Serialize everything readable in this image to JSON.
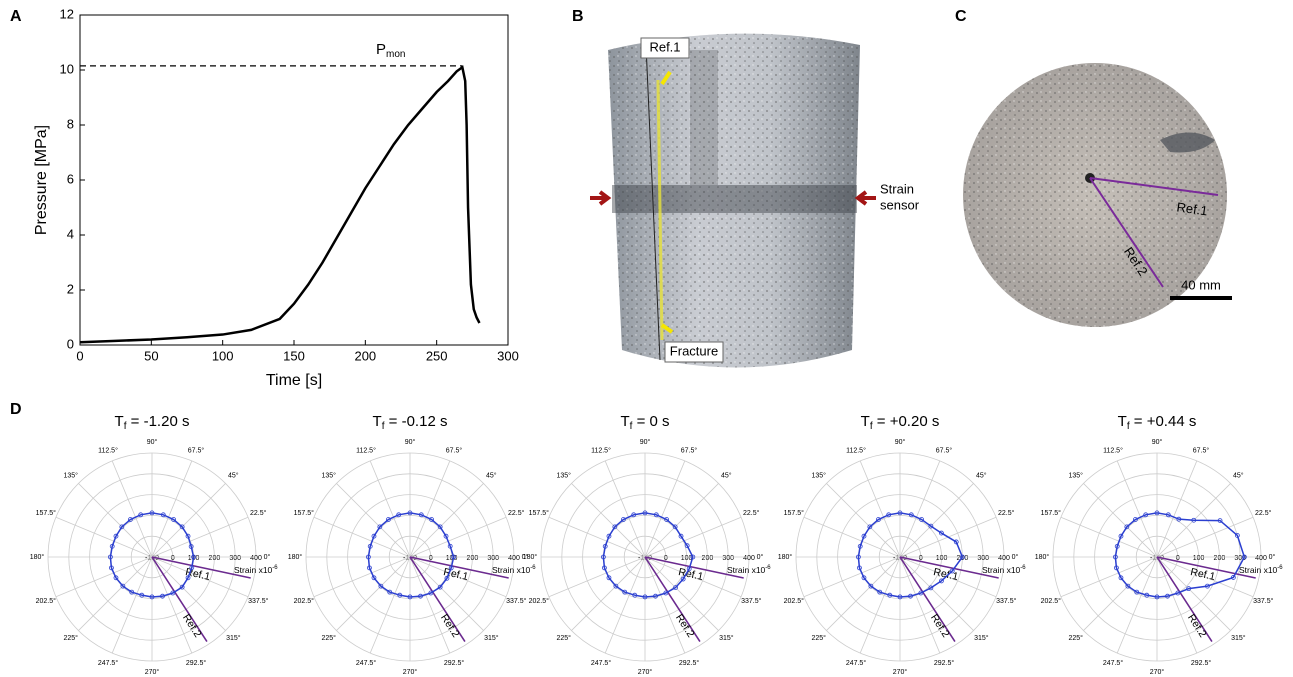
{
  "chart_data": [
    {
      "type": "line",
      "letter": "A",
      "x_label": "Time [s]",
      "y_label": "Pressure [MPa]",
      "x": [
        0,
        25,
        50,
        75,
        100,
        120,
        140,
        150,
        160,
        170,
        180,
        190,
        200,
        210,
        220,
        230,
        240,
        250,
        258,
        264,
        268,
        270,
        271,
        272,
        274,
        276,
        278,
        280
      ],
      "values": [
        0.1,
        0.15,
        0.2,
        0.28,
        0.38,
        0.55,
        0.95,
        1.5,
        2.2,
        3.0,
        3.9,
        4.8,
        5.7,
        6.5,
        7.3,
        8.0,
        8.6,
        9.2,
        9.6,
        9.95,
        10.1,
        9.6,
        8.0,
        5.0,
        2.2,
        1.3,
        1.0,
        0.8
      ],
      "color": "#000000",
      "xlim": [
        0,
        300
      ],
      "ylim": [
        0,
        12
      ],
      "xticks": [
        0,
        50,
        100,
        150,
        200,
        250,
        300
      ],
      "yticks": [
        0,
        2,
        4,
        6,
        8,
        10,
        12
      ],
      "annotation": {
        "main": "P",
        "sub": "mon",
        "y": 10.15
      }
    },
    {
      "type": "polar",
      "title": {
        "main": "T",
        "sub": "f",
        "rest": " = -1.20 s"
      },
      "theta": [
        0,
        15,
        30,
        45,
        60,
        75,
        90,
        105,
        120,
        135,
        150,
        165,
        180,
        195,
        210,
        225,
        240,
        255,
        270,
        285,
        300,
        315,
        330,
        345
      ],
      "values": [
        100,
        95,
        100,
        105,
        108,
        110,
        112,
        110,
        108,
        105,
        100,
        98,
        100,
        102,
        100,
        98,
        95,
        90,
        92,
        95,
        100,
        105,
        100,
        98
      ],
      "color": "#2b3fd0",
      "rlim": [
        -100,
        400
      ],
      "rticks": [
        -100,
        0,
        100,
        200,
        300,
        400
      ],
      "thetaticks": [
        {
          "value": 0,
          "label": "0°"
        },
        {
          "value": 22.5,
          "label": "22.5°"
        },
        {
          "value": 45,
          "label": "45°"
        },
        {
          "value": 67.5,
          "label": "67.5°"
        },
        {
          "value": 90,
          "label": "90°"
        },
        {
          "value": 112.5,
          "label": "112.5°"
        },
        {
          "value": 135,
          "label": "135°"
        },
        {
          "value": 157.5,
          "label": "157.5°"
        },
        {
          "value": 180,
          "label": "180°"
        },
        {
          "value": 202.5,
          "label": "202.5°"
        },
        {
          "value": 225,
          "label": "225°"
        },
        {
          "value": 247.5,
          "label": "247.5°"
        },
        {
          "value": 270,
          "label": "270°"
        },
        {
          "value": 292.5,
          "label": "292.5°"
        },
        {
          "value": 315,
          "label": "315°"
        },
        {
          "value": 337.5,
          "label": "337.5°"
        }
      ],
      "r_label": {
        "main": "Strain x10",
        "sup": "-6"
      },
      "refs": [
        {
          "label": "Ref.1",
          "angle": -12
        },
        {
          "label": "Ref.2",
          "angle": -57
        }
      ]
    },
    {
      "type": "polar",
      "title": {
        "main": "T",
        "sub": "f",
        "rest": " = -0.12 s"
      },
      "theta": [
        0,
        15,
        30,
        45,
        60,
        75,
        90,
        105,
        120,
        135,
        150,
        165,
        180,
        195,
        210,
        225,
        240,
        255,
        270,
        285,
        300,
        315,
        330,
        345
      ],
      "values": [
        110,
        100,
        100,
        105,
        108,
        110,
        112,
        110,
        108,
        105,
        100,
        98,
        100,
        102,
        100,
        98,
        95,
        90,
        92,
        95,
        100,
        105,
        105,
        105
      ],
      "color": "#2b3fd0",
      "rlim": [
        -100,
        400
      ],
      "rticks": [
        -100,
        0,
        100,
        200,
        300,
        400
      ],
      "thetaticks": [
        {
          "value": 0,
          "label": "0°"
        },
        {
          "value": 22.5,
          "label": "22.5°"
        },
        {
          "value": 45,
          "label": "45°"
        },
        {
          "value": 67.5,
          "label": "67.5°"
        },
        {
          "value": 90,
          "label": "90°"
        },
        {
          "value": 112.5,
          "label": "112.5°"
        },
        {
          "value": 135,
          "label": "135°"
        },
        {
          "value": 157.5,
          "label": "157.5°"
        },
        {
          "value": 180,
          "label": "180°"
        },
        {
          "value": 202.5,
          "label": "202.5°"
        },
        {
          "value": 225,
          "label": "225°"
        },
        {
          "value": 247.5,
          "label": "247.5°"
        },
        {
          "value": 270,
          "label": "270°"
        },
        {
          "value": 292.5,
          "label": "292.5°"
        },
        {
          "value": 315,
          "label": "315°"
        },
        {
          "value": 337.5,
          "label": "337.5°"
        }
      ],
      "r_label": {
        "main": "Strain x10",
        "sup": "-6"
      },
      "refs": [
        {
          "label": "Ref.1",
          "angle": -12
        },
        {
          "label": "Ref.2",
          "angle": -57
        }
      ]
    },
    {
      "type": "polar",
      "title": {
        "main": "T",
        "sub": "f",
        "rest": " = 0 s"
      },
      "theta": [
        0,
        15,
        30,
        45,
        60,
        75,
        90,
        105,
        120,
        135,
        150,
        165,
        180,
        195,
        210,
        225,
        240,
        255,
        270,
        285,
        300,
        315,
        330,
        345
      ],
      "values": [
        130,
        110,
        100,
        105,
        108,
        110,
        112,
        110,
        108,
        105,
        100,
        98,
        100,
        102,
        100,
        98,
        95,
        90,
        92,
        95,
        100,
        108,
        112,
        120
      ],
      "color": "#2b3fd0",
      "rlim": [
        -100,
        400
      ],
      "rticks": [
        -100,
        0,
        100,
        200,
        300,
        400
      ],
      "thetaticks": [
        {
          "value": 0,
          "label": "0°"
        },
        {
          "value": 22.5,
          "label": "22.5°"
        },
        {
          "value": 45,
          "label": "45°"
        },
        {
          "value": 67.5,
          "label": "67.5°"
        },
        {
          "value": 90,
          "label": "90°"
        },
        {
          "value": 112.5,
          "label": "112.5°"
        },
        {
          "value": 135,
          "label": "135°"
        },
        {
          "value": 157.5,
          "label": "157.5°"
        },
        {
          "value": 180,
          "label": "180°"
        },
        {
          "value": 202.5,
          "label": "202.5°"
        },
        {
          "value": 225,
          "label": "225°"
        },
        {
          "value": 247.5,
          "label": "247.5°"
        },
        {
          "value": 270,
          "label": "270°"
        },
        {
          "value": 292.5,
          "label": "292.5°"
        },
        {
          "value": 315,
          "label": "315°"
        },
        {
          "value": 337.5,
          "label": "337.5°"
        }
      ],
      "r_label": {
        "main": "Strain x10",
        "sup": "-6"
      },
      "refs": [
        {
          "label": "Ref.1",
          "angle": -12
        },
        {
          "label": "Ref.2",
          "angle": -57
        }
      ]
    },
    {
      "type": "polar",
      "title": {
        "main": "T",
        "sub": "f",
        "rest": " = +0.20 s"
      },
      "theta": [
        0,
        15,
        30,
        45,
        60,
        75,
        90,
        105,
        120,
        135,
        150,
        165,
        180,
        195,
        210,
        225,
        240,
        255,
        270,
        285,
        300,
        315,
        330,
        345
      ],
      "values": [
        200,
        180,
        130,
        110,
        108,
        110,
        112,
        110,
        108,
        105,
        100,
        98,
        100,
        102,
        100,
        98,
        95,
        90,
        92,
        95,
        100,
        110,
        130,
        160
      ],
      "color": "#2b3fd0",
      "rlim": [
        -100,
        400
      ],
      "rticks": [
        -100,
        0,
        100,
        200,
        300,
        400
      ],
      "thetaticks": [
        {
          "value": 0,
          "label": "0°"
        },
        {
          "value": 22.5,
          "label": "22.5°"
        },
        {
          "value": 45,
          "label": "45°"
        },
        {
          "value": 67.5,
          "label": "67.5°"
        },
        {
          "value": 90,
          "label": "90°"
        },
        {
          "value": 112.5,
          "label": "112.5°"
        },
        {
          "value": 135,
          "label": "135°"
        },
        {
          "value": 157.5,
          "label": "157.5°"
        },
        {
          "value": 180,
          "label": "180°"
        },
        {
          "value": 202.5,
          "label": "202.5°"
        },
        {
          "value": 225,
          "label": "225°"
        },
        {
          "value": 247.5,
          "label": "247.5°"
        },
        {
          "value": 270,
          "label": "270°"
        },
        {
          "value": 292.5,
          "label": "292.5°"
        },
        {
          "value": 315,
          "label": "315°"
        },
        {
          "value": 337.5,
          "label": "337.5°"
        }
      ],
      "r_label": {
        "main": "Strain x10",
        "sup": "-6"
      },
      "refs": [
        {
          "label": "Ref.1",
          "angle": -12
        },
        {
          "label": "Ref.2",
          "angle": -57
        }
      ]
    },
    {
      "type": "polar",
      "title": {
        "main": "T",
        "sub": "f",
        "rest": " = +0.44 s"
      },
      "theta": [
        0,
        15,
        30,
        45,
        60,
        75,
        90,
        105,
        120,
        135,
        150,
        165,
        180,
        195,
        210,
        225,
        240,
        255,
        270,
        285,
        300,
        315,
        330,
        345
      ],
      "values": [
        320,
        300,
        250,
        150,
        110,
        110,
        112,
        110,
        108,
        105,
        100,
        98,
        100,
        102,
        100,
        98,
        95,
        90,
        92,
        95,
        100,
        115,
        180,
        280
      ],
      "color": "#2b3fd0",
      "rlim": [
        -100,
        400
      ],
      "rticks": [
        -100,
        0,
        100,
        200,
        300,
        400
      ],
      "thetaticks": [
        {
          "value": 0,
          "label": "0°"
        },
        {
          "value": 22.5,
          "label": "22.5°"
        },
        {
          "value": 45,
          "label": "45°"
        },
        {
          "value": 67.5,
          "label": "67.5°"
        },
        {
          "value": 90,
          "label": "90°"
        },
        {
          "value": 112.5,
          "label": "112.5°"
        },
        {
          "value": 135,
          "label": "135°"
        },
        {
          "value": 157.5,
          "label": "157.5°"
        },
        {
          "value": 180,
          "label": "180°"
        },
        {
          "value": 202.5,
          "label": "202.5°"
        },
        {
          "value": 225,
          "label": "225°"
        },
        {
          "value": 247.5,
          "label": "247.5°"
        },
        {
          "value": 270,
          "label": "270°"
        },
        {
          "value": 292.5,
          "label": "292.5°"
        },
        {
          "value": 315,
          "label": "315°"
        },
        {
          "value": 337.5,
          "label": "337.5°"
        }
      ],
      "r_label": {
        "main": "Strain x10",
        "sup": "-6"
      },
      "refs": [
        {
          "label": "Ref.1",
          "angle": -12
        },
        {
          "label": "Ref.2",
          "angle": -57
        }
      ]
    }
  ],
  "panel_B": {
    "letter": "B",
    "ref": "Ref.1",
    "sensor": [
      "Strain",
      "sensor"
    ],
    "fracture": "Fracture"
  },
  "panel_C": {
    "letter": "C",
    "ref1": "Ref.1",
    "ref2": "Ref.2",
    "scale": "40 mm"
  },
  "panel_D": {
    "letter": "D"
  }
}
